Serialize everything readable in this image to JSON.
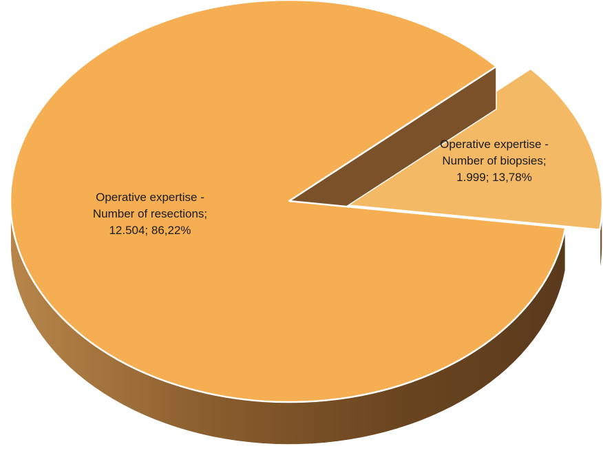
{
  "chart_data": {
    "type": "pie",
    "title": "",
    "slices": [
      {
        "category": "Operative expertise - Number of resections",
        "value": 12504,
        "value_label": "12.504",
        "percent": 86.22,
        "percent_label": "86,22%",
        "label_lines": [
          "Operative expertise -",
          "Number of resections;",
          "12.504; 86,22%"
        ],
        "color": "#F5AE52",
        "side_color": "#7A5128",
        "exploded": false
      },
      {
        "category": "Operative expertise - Number of biopsies",
        "value": 1999,
        "value_label": "1.999",
        "percent": 13.78,
        "percent_label": "13,78%",
        "label_lines": [
          "Operative expertise -",
          "Number of biopsies;",
          "1.999; 13,78%"
        ],
        "color": "#F3B964",
        "side_color": "#6B4520",
        "exploded": true
      }
    ],
    "legend": "none",
    "style": "3d-exploded"
  }
}
